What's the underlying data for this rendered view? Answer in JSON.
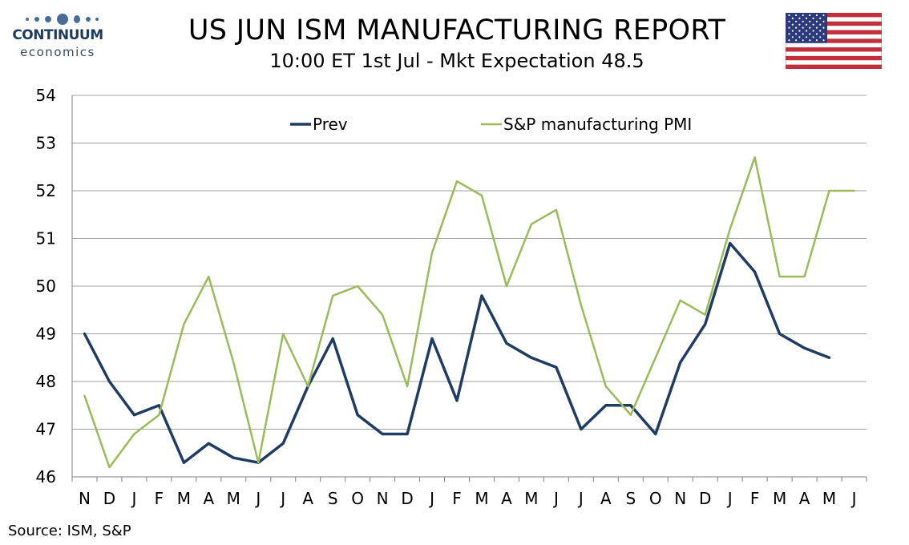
{
  "logo": {
    "name": "CONTINUUM",
    "sub": "economics"
  },
  "header": {
    "title": "US JUN ISM MANUFACTURING REPORT",
    "subtitle": "10:00 ET 1st Jul - Mkt Expectation 48.5"
  },
  "flag": {
    "icon": "us-flag-icon"
  },
  "source": "Source: ISM, S&P",
  "colors": {
    "prev": "#1f3c64",
    "pmi": "#9bbb59",
    "grid": "#a0a0a0"
  },
  "chart_data": {
    "type": "line",
    "categories": [
      "N",
      "D",
      "J",
      "F",
      "M",
      "A",
      "M",
      "J",
      "J",
      "A",
      "S",
      "O",
      "N",
      "D",
      "J",
      "F",
      "M",
      "A",
      "M",
      "J",
      "J",
      "A",
      "S",
      "O",
      "N",
      "D",
      "J",
      "F",
      "M",
      "A",
      "M",
      "J"
    ],
    "ylim": [
      46,
      54
    ],
    "yticks": [
      46,
      47,
      48,
      49,
      50,
      51,
      52,
      53,
      54
    ],
    "grid": true,
    "legend_position": "top",
    "series": [
      {
        "name": "Prev",
        "color": "#1f3c64",
        "values": [
          49.0,
          48.0,
          47.3,
          47.5,
          46.3,
          46.7,
          46.4,
          46.3,
          46.7,
          47.9,
          48.9,
          47.3,
          46.9,
          46.9,
          48.9,
          47.6,
          49.8,
          48.8,
          48.5,
          48.3,
          47.0,
          47.5,
          47.5,
          46.9,
          48.4,
          49.2,
          50.9,
          50.3,
          49.0,
          48.7,
          48.5,
          null
        ]
      },
      {
        "name": "S&P manufacturing PMI",
        "color": "#9bbb59",
        "values": [
          47.7,
          46.2,
          46.9,
          47.3,
          49.2,
          50.2,
          48.4,
          46.3,
          49.0,
          47.9,
          49.8,
          50.0,
          49.4,
          47.9,
          50.7,
          52.2,
          51.9,
          50.0,
          51.3,
          51.6,
          49.6,
          47.9,
          47.3,
          48.5,
          49.7,
          49.4,
          51.2,
          52.7,
          50.2,
          50.2,
          52.0,
          52.0
        ]
      }
    ]
  }
}
